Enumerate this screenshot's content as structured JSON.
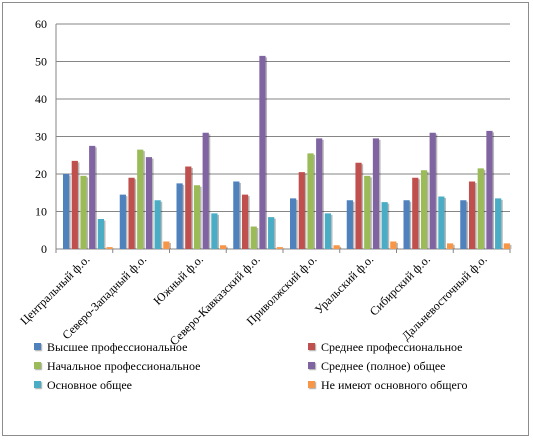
{
  "chart_data": {
    "type": "bar",
    "categories": [
      "Центральный ф.о.",
      "Северо-Западный ф.о.",
      "Южный ф.о.",
      "Северо-Кавказский ф.о.",
      "Приволжский ф.о.",
      "Уральский ф.о.",
      "Сибирский ф.о.",
      "Дальневосточный ф.о."
    ],
    "series": [
      {
        "name": "Высшее профессиональное",
        "color": "#4f81bd",
        "values": [
          20,
          14.5,
          17.5,
          18,
          13.5,
          13,
          13,
          13
        ]
      },
      {
        "name": "Среднее профессиональное",
        "color": "#c0504d",
        "values": [
          23.5,
          19,
          22,
          14.5,
          20.5,
          23,
          19,
          18
        ]
      },
      {
        "name": "Начальное профессиональное",
        "color": "#9bbb59",
        "values": [
          19.5,
          26.5,
          17,
          6,
          25.5,
          19.5,
          21,
          21.5
        ]
      },
      {
        "name": "Среднее (полное) общее",
        "color": "#8064a2",
        "values": [
          27.5,
          24.5,
          31,
          51.5,
          29.5,
          29.5,
          31,
          31.5
        ]
      },
      {
        "name": "Основное общее",
        "color": "#4bacc6",
        "values": [
          8,
          13,
          9.5,
          8.5,
          9.5,
          12.5,
          14,
          13.5
        ]
      },
      {
        "name": "Не имеют основного общего",
        "color": "#f79646",
        "values": [
          0.5,
          2,
          1,
          0.5,
          1,
          2,
          1.5,
          1.5
        ]
      }
    ],
    "yticks": [
      "0",
      "10",
      "20",
      "30",
      "40",
      "50",
      "60"
    ],
    "ylim": [
      0,
      60
    ],
    "grid": true,
    "legend": "bottom"
  }
}
